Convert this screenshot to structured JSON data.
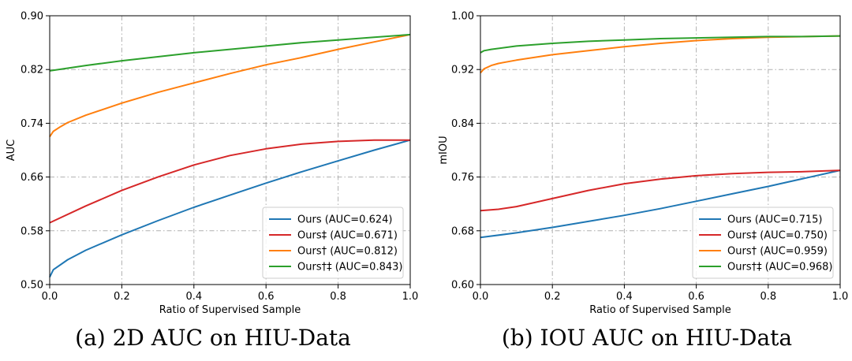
{
  "chart_data": [
    {
      "type": "line",
      "xlabel": "Ratio of Supervised Sample",
      "ylabel": "AUC",
      "xlim": [
        0.0,
        1.0
      ],
      "ylim": [
        0.5,
        0.9
      ],
      "x_ticks": [
        "0.0",
        "0.2",
        "0.4",
        "0.6",
        "0.8",
        "1.0"
      ],
      "y_ticks": [
        "0.50",
        "0.58",
        "0.66",
        "0.74",
        "0.82",
        "0.90"
      ],
      "grid": true,
      "legend_position": "lower-right",
      "caption": "(a)  2D AUC on HIU-Data",
      "series": [
        {
          "name": "Ours (AUC=0.624)",
          "color": "#1f77b4",
          "x": [
            0.0,
            0.01,
            0.05,
            0.1,
            0.2,
            0.3,
            0.4,
            0.5,
            0.6,
            0.7,
            0.8,
            0.9,
            1.0
          ],
          "y": [
            0.511,
            0.522,
            0.537,
            0.551,
            0.574,
            0.595,
            0.615,
            0.633,
            0.651,
            0.668,
            0.684,
            0.7,
            0.715
          ]
        },
        {
          "name": "Ours‡ (AUC=0.671)",
          "color": "#d62728",
          "x": [
            0.0,
            0.1,
            0.2,
            0.3,
            0.4,
            0.5,
            0.6,
            0.7,
            0.8,
            0.9,
            1.0
          ],
          "y": [
            0.592,
            0.617,
            0.64,
            0.66,
            0.678,
            0.692,
            0.702,
            0.709,
            0.713,
            0.715,
            0.715
          ]
        },
        {
          "name": "Ours† (AUC=0.812)",
          "color": "#ff7f0e",
          "x": [
            0.0,
            0.01,
            0.03,
            0.05,
            0.1,
            0.2,
            0.3,
            0.4,
            0.5,
            0.6,
            0.7,
            0.8,
            0.9,
            1.0
          ],
          "y": [
            0.72,
            0.728,
            0.735,
            0.741,
            0.752,
            0.77,
            0.786,
            0.8,
            0.814,
            0.827,
            0.838,
            0.85,
            0.861,
            0.872
          ]
        },
        {
          "name": "Ours†‡ (AUC=0.843)",
          "color": "#2ca02c",
          "x": [
            0.0,
            0.1,
            0.2,
            0.3,
            0.4,
            0.5,
            0.6,
            0.7,
            0.8,
            0.9,
            1.0
          ],
          "y": [
            0.818,
            0.826,
            0.833,
            0.839,
            0.845,
            0.85,
            0.855,
            0.86,
            0.864,
            0.868,
            0.872
          ]
        }
      ]
    },
    {
      "type": "line",
      "xlabel": "Ratio of Supervised Sample",
      "ylabel": "mIOU",
      "xlim": [
        0.0,
        1.0
      ],
      "ylim": [
        0.6,
        1.0
      ],
      "x_ticks": [
        "0.0",
        "0.2",
        "0.4",
        "0.6",
        "0.8",
        "1.0"
      ],
      "y_ticks": [
        "0.60",
        "0.68",
        "0.76",
        "0.84",
        "0.92",
        "1.00"
      ],
      "grid": true,
      "legend_position": "lower-right",
      "caption": "(b)  IOU AUC on HIU-Data",
      "series": [
        {
          "name": "Ours (AUC=0.715)",
          "color": "#1f77b4",
          "x": [
            0.0,
            0.1,
            0.2,
            0.3,
            0.4,
            0.5,
            0.6,
            0.7,
            0.8,
            0.9,
            1.0
          ],
          "y": [
            0.67,
            0.677,
            0.685,
            0.694,
            0.703,
            0.713,
            0.724,
            0.735,
            0.746,
            0.758,
            0.77
          ]
        },
        {
          "name": "Ours‡ (AUC=0.750)",
          "color": "#d62728",
          "x": [
            0.0,
            0.05,
            0.1,
            0.2,
            0.3,
            0.4,
            0.5,
            0.6,
            0.7,
            0.8,
            0.9,
            1.0
          ],
          "y": [
            0.71,
            0.712,
            0.716,
            0.728,
            0.74,
            0.75,
            0.757,
            0.762,
            0.765,
            0.767,
            0.768,
            0.77
          ]
        },
        {
          "name": "Ours† (AUC=0.959)",
          "color": "#ff7f0e",
          "x": [
            0.0,
            0.01,
            0.03,
            0.05,
            0.1,
            0.2,
            0.3,
            0.4,
            0.5,
            0.6,
            0.7,
            0.8,
            0.9,
            1.0
          ],
          "y": [
            0.915,
            0.921,
            0.926,
            0.929,
            0.934,
            0.942,
            0.948,
            0.954,
            0.959,
            0.963,
            0.966,
            0.968,
            0.969,
            0.97
          ]
        },
        {
          "name": "Ours†‡ (AUC=0.968)",
          "color": "#2ca02c",
          "x": [
            0.0,
            0.01,
            0.03,
            0.1,
            0.2,
            0.3,
            0.4,
            0.5,
            0.6,
            0.7,
            0.8,
            0.9,
            1.0
          ],
          "y": [
            0.945,
            0.948,
            0.95,
            0.955,
            0.959,
            0.962,
            0.964,
            0.966,
            0.967,
            0.968,
            0.969,
            0.969,
            0.97
          ]
        }
      ]
    }
  ]
}
